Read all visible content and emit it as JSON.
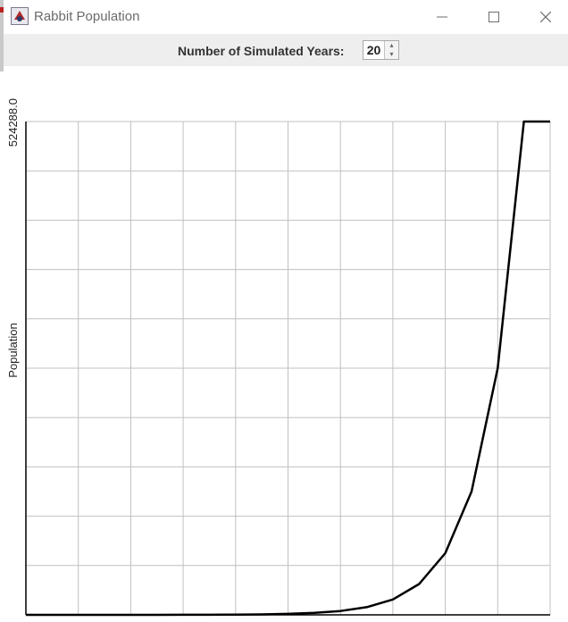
{
  "window": {
    "title": "Rabbit Population",
    "minimize_icon": "minimize-icon",
    "maximize_icon": "maximize-icon",
    "close_icon": "close-icon"
  },
  "toolbar": {
    "years_label": "Number of Simulated Years:",
    "years_value": "20"
  },
  "chart_data": {
    "type": "line",
    "ylabel": "Population",
    "xlabel": "",
    "y_tick_labels": [
      "524288.0"
    ],
    "ylim": [
      0,
      524288
    ],
    "xlim": [
      0,
      20
    ],
    "grid": true,
    "series": [
      {
        "x": [
          0,
          1,
          2,
          3,
          4,
          5,
          6,
          7,
          8,
          9,
          10,
          11,
          12,
          13,
          14,
          15,
          16,
          17,
          18,
          19,
          20
        ],
        "values": [
          1,
          2,
          4,
          8,
          16,
          32,
          64,
          128,
          256,
          512,
          1024,
          2048,
          4096,
          8192,
          16384,
          32768,
          65536,
          131072,
          262144,
          524288,
          524288
        ],
        "color": "#000000"
      }
    ]
  }
}
